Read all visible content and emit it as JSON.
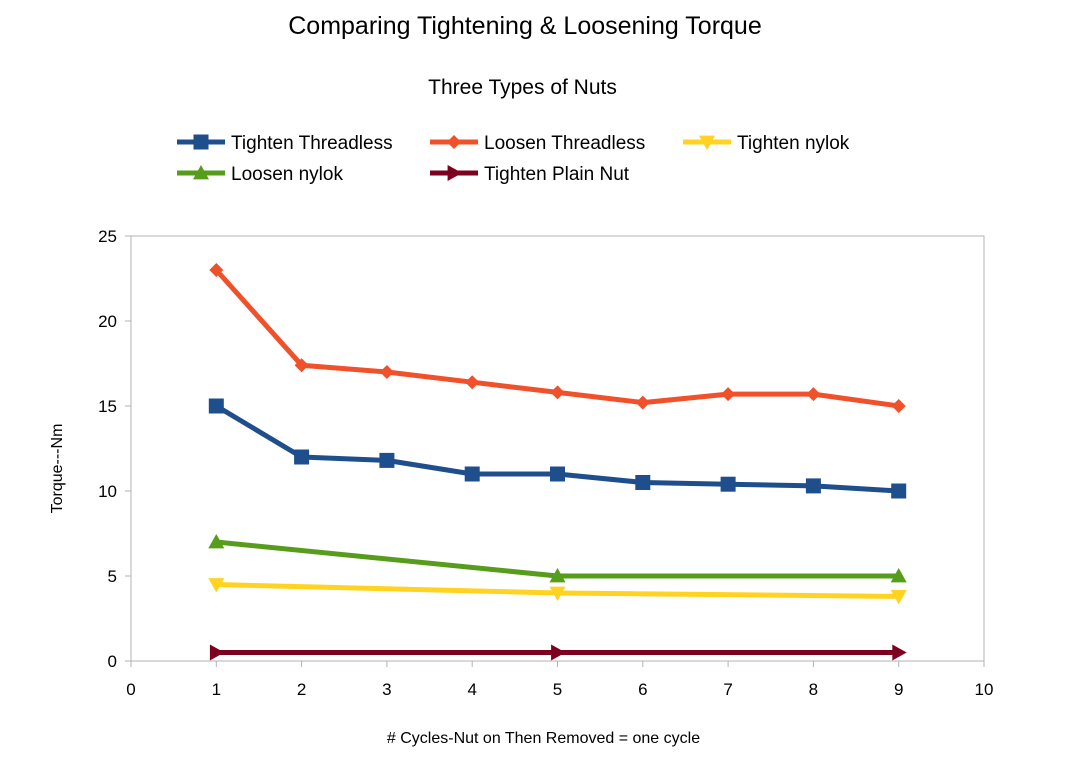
{
  "chart_data": {
    "type": "line",
    "title": "Comparing Tightening  & Loosening Torque",
    "subtitle": "Three Types of Nuts",
    "xlabel": "# Cycles-Nut on Then Removed = one cycle",
    "ylabel": "Torque---Nm",
    "xlim": [
      0,
      10
    ],
    "ylim": [
      0,
      25
    ],
    "x_ticks": [
      0,
      1,
      2,
      3,
      4,
      5,
      6,
      7,
      8,
      9,
      10
    ],
    "y_ticks": [
      0,
      5,
      10,
      15,
      20,
      25
    ],
    "grid": false,
    "legend_position": "top",
    "series": [
      {
        "name": "Tighten Threadless",
        "color": "#1f4e8c",
        "marker": "square",
        "x": [
          1,
          2,
          3,
          4,
          5,
          6,
          7,
          8,
          9
        ],
        "y": [
          15,
          12,
          11.8,
          11,
          11,
          10.5,
          10.4,
          10.3,
          10
        ]
      },
      {
        "name": "Loosen Threadless",
        "color": "#f0502a",
        "marker": "diamond",
        "x": [
          1,
          2,
          3,
          4,
          5,
          6,
          7,
          8,
          9
        ],
        "y": [
          23,
          17.4,
          17,
          16.4,
          15.8,
          15.2,
          15.7,
          15.7,
          15
        ]
      },
      {
        "name": "Tighten nylok",
        "color": "#ffd320",
        "marker": "triangle-down",
        "x": [
          1,
          5,
          9
        ],
        "y": [
          4.5,
          4,
          3.8
        ]
      },
      {
        "name": "Loosen nylok",
        "color": "#579d1c",
        "marker": "triangle-up",
        "x": [
          1,
          5,
          9
        ],
        "y": [
          7,
          5,
          5
        ]
      },
      {
        "name": "Tighten Plain Nut",
        "color": "#7e0021",
        "marker": "triangle-right",
        "x": [
          1,
          5,
          9
        ],
        "y": [
          0.5,
          0.5,
          0.5
        ]
      }
    ]
  }
}
